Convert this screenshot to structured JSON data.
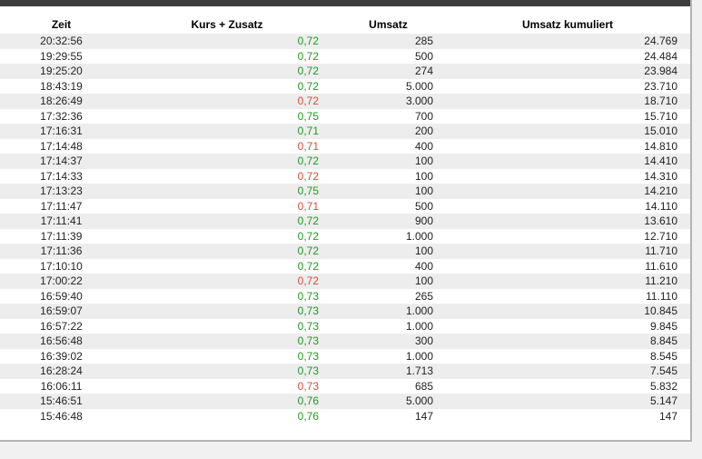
{
  "page": {
    "background_color": "#f1f1f1",
    "panel_background_color": "#ffffff",
    "top_bar_color": "#3c3c3c",
    "border_color": "#b4b4b4",
    "row_stripe_color": "#ededed"
  },
  "colors": {
    "price_up": "#1e9c1e",
    "price_down": "#dd4b3c",
    "text": "#222222",
    "header_text": "#000000"
  },
  "table": {
    "columns": [
      {
        "key": "zeit",
        "label": "Zeit"
      },
      {
        "key": "kurs",
        "label": "Kurs + Zusatz"
      },
      {
        "key": "umsatz",
        "label": "Umsatz"
      },
      {
        "key": "kumuliert",
        "label": "Umsatz kumuliert"
      }
    ],
    "rows": [
      {
        "zeit": "20:32:56",
        "kurs": "0,72",
        "trend": "up",
        "umsatz": "285",
        "kumuliert": "24.769"
      },
      {
        "zeit": "19:29:55",
        "kurs": "0,72",
        "trend": "up",
        "umsatz": "500",
        "kumuliert": "24.484"
      },
      {
        "zeit": "19:25:20",
        "kurs": "0,72",
        "trend": "up",
        "umsatz": "274",
        "kumuliert": "23.984"
      },
      {
        "zeit": "18:43:19",
        "kurs": "0,72",
        "trend": "up",
        "umsatz": "5.000",
        "kumuliert": "23.710"
      },
      {
        "zeit": "18:26:49",
        "kurs": "0,72",
        "trend": "down",
        "umsatz": "3.000",
        "kumuliert": "18.710"
      },
      {
        "zeit": "17:32:36",
        "kurs": "0,75",
        "trend": "up",
        "umsatz": "700",
        "kumuliert": "15.710"
      },
      {
        "zeit": "17:16:31",
        "kurs": "0,71",
        "trend": "up",
        "umsatz": "200",
        "kumuliert": "15.010"
      },
      {
        "zeit": "17:14:48",
        "kurs": "0,71",
        "trend": "down",
        "umsatz": "400",
        "kumuliert": "14.810"
      },
      {
        "zeit": "17:14:37",
        "kurs": "0,72",
        "trend": "up",
        "umsatz": "100",
        "kumuliert": "14.410"
      },
      {
        "zeit": "17:14:33",
        "kurs": "0,72",
        "trend": "down",
        "umsatz": "100",
        "kumuliert": "14.310"
      },
      {
        "zeit": "17:13:23",
        "kurs": "0,75",
        "trend": "up",
        "umsatz": "100",
        "kumuliert": "14.210"
      },
      {
        "zeit": "17:11:47",
        "kurs": "0,71",
        "trend": "down",
        "umsatz": "500",
        "kumuliert": "14.110"
      },
      {
        "zeit": "17:11:41",
        "kurs": "0,72",
        "trend": "up",
        "umsatz": "900",
        "kumuliert": "13.610"
      },
      {
        "zeit": "17:11:39",
        "kurs": "0,72",
        "trend": "up",
        "umsatz": "1.000",
        "kumuliert": "12.710"
      },
      {
        "zeit": "17:11:36",
        "kurs": "0,72",
        "trend": "up",
        "umsatz": "100",
        "kumuliert": "11.710"
      },
      {
        "zeit": "17:10:10",
        "kurs": "0,72",
        "trend": "up",
        "umsatz": "400",
        "kumuliert": "11.610"
      },
      {
        "zeit": "17:00:22",
        "kurs": "0,72",
        "trend": "down",
        "umsatz": "100",
        "kumuliert": "11.210"
      },
      {
        "zeit": "16:59:40",
        "kurs": "0,73",
        "trend": "up",
        "umsatz": "265",
        "kumuliert": "11.110"
      },
      {
        "zeit": "16:59:07",
        "kurs": "0,73",
        "trend": "up",
        "umsatz": "1.000",
        "kumuliert": "10.845"
      },
      {
        "zeit": "16:57:22",
        "kurs": "0,73",
        "trend": "up",
        "umsatz": "1.000",
        "kumuliert": "9.845"
      },
      {
        "zeit": "16:56:48",
        "kurs": "0,73",
        "trend": "up",
        "umsatz": "300",
        "kumuliert": "8.845"
      },
      {
        "zeit": "16:39:02",
        "kurs": "0,73",
        "trend": "up",
        "umsatz": "1.000",
        "kumuliert": "8.545"
      },
      {
        "zeit": "16:28:24",
        "kurs": "0,73",
        "trend": "up",
        "umsatz": "1.713",
        "kumuliert": "7.545"
      },
      {
        "zeit": "16:06:11",
        "kurs": "0,73",
        "trend": "down",
        "umsatz": "685",
        "kumuliert": "5.832"
      },
      {
        "zeit": "15:46:51",
        "kurs": "0,76",
        "trend": "up",
        "umsatz": "5.000",
        "kumuliert": "5.147"
      },
      {
        "zeit": "15:46:48",
        "kurs": "0,76",
        "trend": "up",
        "umsatz": "147",
        "kumuliert": "147"
      }
    ]
  }
}
